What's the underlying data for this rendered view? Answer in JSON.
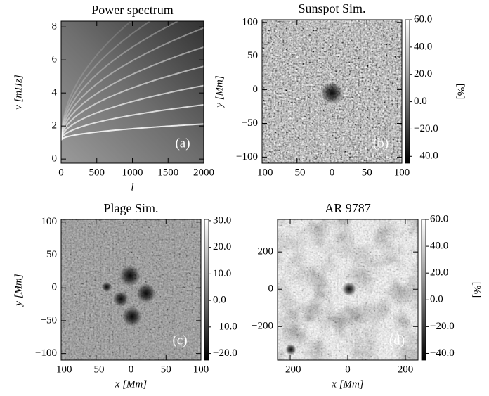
{
  "chart_data": [
    {
      "type": "image",
      "title": "Power spectrum",
      "xlabel": "l",
      "ylabel": "ν [mHz]",
      "panel_label": "(a)",
      "xlim": [
        0,
        2000
      ],
      "xticks": [
        0,
        500,
        1000,
        1500,
        2000
      ],
      "ylim": [
        -0.25,
        8.35
      ],
      "yticks": [
        0,
        2,
        4,
        6,
        8
      ]
    },
    {
      "type": "image",
      "title": "Sunspot Sim.",
      "ylabel": "y [Mm]",
      "panel_label": "(b)",
      "xlim": [
        -100,
        100
      ],
      "xticks": [
        {
          "value": -100,
          "label": "−100"
        },
        {
          "value": -50,
          "label": "−50"
        },
        0,
        50,
        100
      ],
      "ylim": [
        -109,
        104
      ],
      "yticks": [
        {
          "value": -100,
          "label": "−100"
        },
        {
          "value": -50,
          "label": "−50"
        },
        0,
        50,
        100
      ],
      "colorbar": {
        "lim": [
          -45,
          60
        ],
        "label": "[%]",
        "ticks": [
          {
            "value": -40,
            "label": "−40.0"
          },
          {
            "value": -20,
            "label": "−20.0"
          },
          {
            "value": 0,
            "label": "0.0"
          },
          {
            "value": 20,
            "label": "20.0"
          },
          {
            "value": 40,
            "label": "40.0"
          },
          {
            "value": 60,
            "label": "60.0"
          }
        ]
      }
    },
    {
      "type": "image",
      "title": "Plage Sim.",
      "xlabel": "x [Mm]",
      "ylabel": "y [Mm]",
      "panel_label": "(c)",
      "xlim": [
        -100,
        100
      ],
      "xticks": [
        {
          "value": -100,
          "label": "−100"
        },
        {
          "value": -50,
          "label": "−50"
        },
        0,
        50,
        100
      ],
      "ylim": [
        -110,
        104
      ],
      "yticks": [
        {
          "value": -100,
          "label": "−100"
        },
        {
          "value": -50,
          "label": "−50"
        },
        0,
        50,
        100
      ],
      "colorbar": {
        "lim": [
          -22.5,
          30.5
        ],
        "ticks": [
          {
            "value": -20,
            "label": "−20.0"
          },
          {
            "value": -10,
            "label": "−10.0"
          },
          {
            "value": 0,
            "label": "0.0"
          },
          {
            "value": 10,
            "label": "10.0"
          },
          {
            "value": 20,
            "label": "20.0"
          },
          {
            "value": 30,
            "label": "30.0"
          }
        ]
      }
    },
    {
      "type": "image",
      "title": "AR 9787",
      "xlabel": "x [Mm]",
      "panel_label": "(d)",
      "xlim": [
        -244,
        244
      ],
      "xticks": [
        {
          "value": -200,
          "label": "−200"
        },
        0,
        200
      ],
      "ylim": [
        -380,
        374
      ],
      "yticks": [
        {
          "value": -200,
          "label": "−200"
        },
        0,
        200
      ],
      "colorbar": {
        "lim": [
          -45,
          60
        ],
        "label": "[%]",
        "ticks": [
          {
            "value": -40,
            "label": "−40.0"
          },
          {
            "value": -20,
            "label": "−20.0"
          },
          {
            "value": 0,
            "label": "0.0"
          },
          {
            "value": 20,
            "label": "20.0"
          },
          {
            "value": 40,
            "label": "40.0"
          },
          {
            "value": 60,
            "label": "60.0"
          }
        ]
      }
    }
  ]
}
